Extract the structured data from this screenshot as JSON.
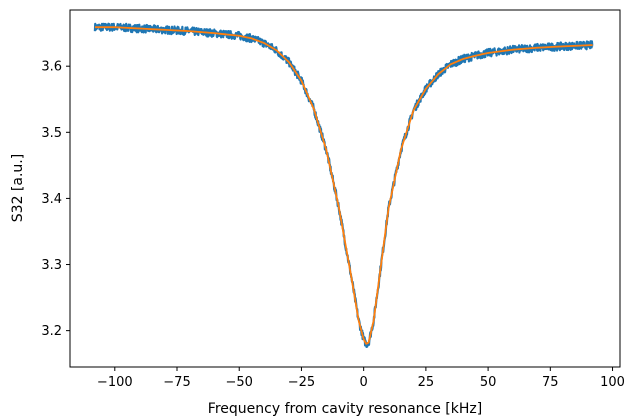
{
  "chart_data": {
    "type": "line",
    "title": "",
    "xlabel": "Frequency from cavity resonance [kHz]",
    "ylabel": "S32 [a.u.]",
    "xlim": [
      -118,
      103
    ],
    "ylim": [
      3.145,
      3.685
    ],
    "xticks": [
      -100,
      -75,
      -50,
      -25,
      0,
      25,
      50,
      75,
      100
    ],
    "xtick_labels": [
      "−100",
      "−75",
      "−50",
      "−25",
      "0",
      "25",
      "50",
      "75",
      "100"
    ],
    "yticks": [
      3.2,
      3.3,
      3.4,
      3.5,
      3.6
    ],
    "ytick_labels": [
      "3.2",
      "3.3",
      "3.4",
      "3.5",
      "3.6"
    ],
    "grid": false,
    "legend": "none",
    "series": [
      {
        "style": "noisy measured trace",
        "color": "#1f77b4",
        "x": [
          -108,
          -100,
          -90,
          -80,
          -70,
          -60,
          -50,
          -45,
          -40,
          -35,
          -30,
          -25,
          -20,
          -15,
          -10,
          -5,
          -2,
          0,
          1,
          2,
          4,
          7,
          10,
          15,
          20,
          25,
          30,
          35,
          40,
          45,
          50,
          60,
          70,
          80,
          92
        ],
        "y": [
          3.659,
          3.659,
          3.657,
          3.655,
          3.653,
          3.65,
          3.646,
          3.642,
          3.635,
          3.624,
          3.606,
          3.578,
          3.535,
          3.473,
          3.387,
          3.282,
          3.215,
          3.187,
          3.18,
          3.182,
          3.215,
          3.3,
          3.385,
          3.474,
          3.533,
          3.566,
          3.588,
          3.603,
          3.611,
          3.616,
          3.62,
          3.625,
          3.628,
          3.63,
          3.632
        ]
      },
      {
        "style": "smooth fit",
        "color": "#ff7f0e",
        "x": [
          -108,
          -100,
          -90,
          -80,
          -70,
          -60,
          -50,
          -45,
          -40,
          -35,
          -30,
          -25,
          -20,
          -15,
          -10,
          -5,
          -2,
          0,
          1,
          2,
          4,
          7,
          10,
          15,
          20,
          25,
          30,
          35,
          40,
          45,
          50,
          60,
          70,
          80,
          92
        ],
        "y": [
          3.659,
          3.659,
          3.657,
          3.655,
          3.653,
          3.65,
          3.646,
          3.642,
          3.635,
          3.624,
          3.606,
          3.578,
          3.535,
          3.473,
          3.387,
          3.282,
          3.215,
          3.187,
          3.18,
          3.182,
          3.215,
          3.3,
          3.385,
          3.474,
          3.533,
          3.566,
          3.588,
          3.603,
          3.611,
          3.616,
          3.62,
          3.625,
          3.628,
          3.63,
          3.632
        ]
      }
    ]
  }
}
